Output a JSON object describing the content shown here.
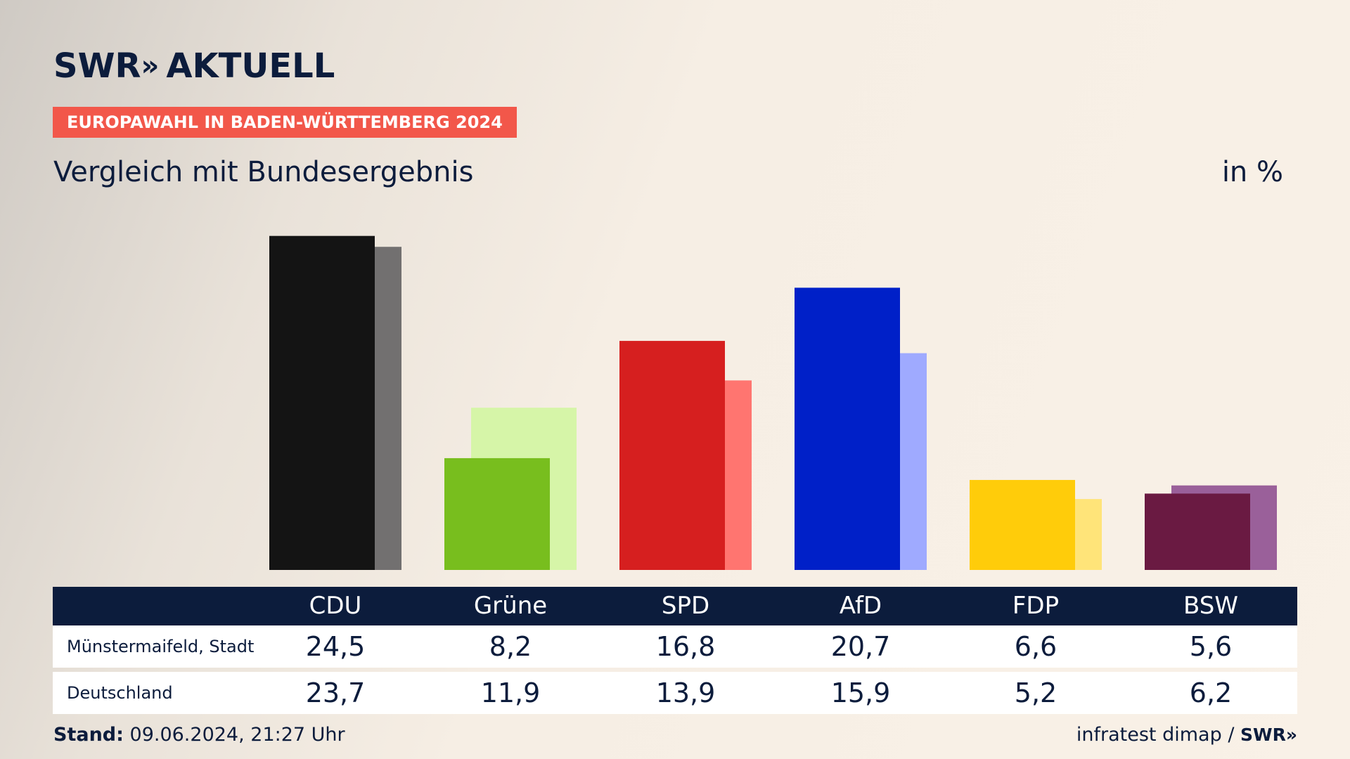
{
  "brand": {
    "logo_text": "SWR",
    "logo_chevrons": "»",
    "logo_suffix": "AKTUELL",
    "footer_logo": "SWR»"
  },
  "badge": "EUROPAWAHL IN BADEN-WÜRTTEMBERG 2024",
  "title": "Vergleich mit Bundesergebnis",
  "unit": "in %",
  "footer": {
    "stand_label": "Stand:",
    "stand_value": "09.06.2024, 21:27 Uhr",
    "source": "infratest dimap /"
  },
  "chart_data": {
    "type": "bar",
    "categories": [
      "CDU",
      "Grüne",
      "SPD",
      "AfD",
      "FDP",
      "BSW"
    ],
    "series": [
      {
        "name": "Münstermaifeld, Stadt",
        "values": [
          24.5,
          8.2,
          16.8,
          20.7,
          6.6,
          5.6
        ]
      },
      {
        "name": "Deutschland",
        "values": [
          23.7,
          11.9,
          13.9,
          15.9,
          5.2,
          6.2
        ]
      }
    ],
    "value_labels": [
      [
        "24,5",
        "8,2",
        "16,8",
        "20,7",
        "6,6",
        "5,6"
      ],
      [
        "23,7",
        "11,9",
        "13,9",
        "15,9",
        "5,2",
        "6,2"
      ]
    ],
    "colors_primary": [
      "#141414",
      "#78be1e",
      "#d61f1f",
      "#0020c8",
      "#ffcc0a",
      "#6a1a42"
    ],
    "colors_secondary": [
      "#727070",
      "#d6f5a8",
      "#ff7570",
      "#9faaff",
      "#ffe479",
      "#9a609a"
    ],
    "ylim": [
      0,
      25
    ]
  }
}
